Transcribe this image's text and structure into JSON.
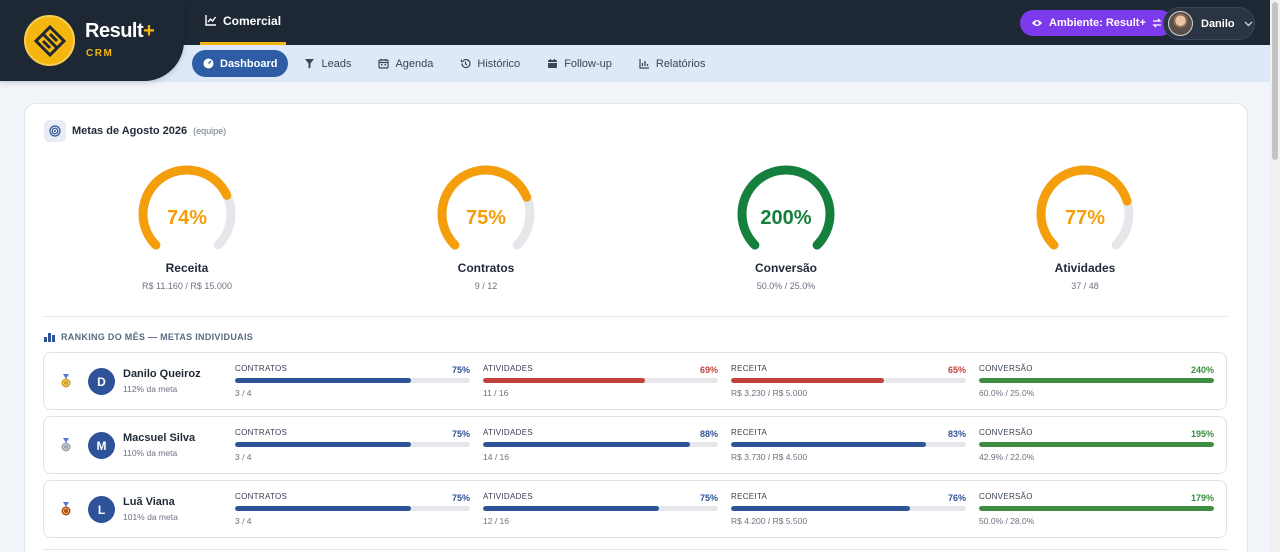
{
  "brand": {
    "name": "Result",
    "plus": "+",
    "sub": "CRM"
  },
  "header": {
    "main_tab": "Comercial",
    "env_button": "Ambiente: Result+",
    "user_name": "Danilo"
  },
  "nav": [
    {
      "label": "Dashboard",
      "icon": "gauge-icon",
      "active": true
    },
    {
      "label": "Leads",
      "icon": "funnel-icon",
      "active": false
    },
    {
      "label": "Agenda",
      "icon": "calendar-icon",
      "active": false
    },
    {
      "label": "Histórico",
      "icon": "history-icon",
      "active": false
    },
    {
      "label": "Follow-up",
      "icon": "calendar-check-icon",
      "active": false
    },
    {
      "label": "Relatórios",
      "icon": "report-icon",
      "active": false
    }
  ],
  "goals": {
    "title": "Metas de Agosto 2026",
    "subtitle": "(equipe)",
    "items": [
      {
        "label": "Receita",
        "pct_text": "74%",
        "fraction": 0.74,
        "value": "R$ 11.160 / R$ 15.000",
        "color": "#f59e0b"
      },
      {
        "label": "Contratos",
        "pct_text": "75%",
        "fraction": 0.75,
        "value": "9 / 12",
        "color": "#f59e0b"
      },
      {
        "label": "Conversão",
        "pct_text": "200%",
        "fraction": 1.0,
        "value": "50.0% / 25.0%",
        "color": "#15803d"
      },
      {
        "label": "Atividades",
        "pct_text": "77%",
        "fraction": 0.77,
        "value": "37 / 48",
        "color": "#f59e0b"
      }
    ]
  },
  "ranking": {
    "title": "RANKING DO MÊS — METAS INDIVIDUAIS",
    "rows": [
      {
        "initial": "D",
        "name": "Danilo Queiroz",
        "meta": "112% da meta",
        "medal_color": "#d4a017",
        "metrics": [
          {
            "label": "CONTRATOS",
            "pct_text": "75%",
            "fraction": 0.75,
            "value": "3 / 4",
            "color": "#2e5398"
          },
          {
            "label": "ATIVIDADES",
            "pct_text": "69%",
            "fraction": 0.69,
            "value": "11 / 16",
            "color": "#c2413b"
          },
          {
            "label": "RECEITA",
            "pct_text": "65%",
            "fraction": 0.65,
            "value": "R$ 3.230 / R$ 5.000",
            "color": "#c2413b"
          },
          {
            "label": "CONVERSÃO",
            "pct_text": "240%",
            "fraction": 1.0,
            "value": "60.0% / 25.0%",
            "color": "#3d8c40"
          }
        ]
      },
      {
        "initial": "M",
        "name": "Macsuel Silva",
        "meta": "110% da meta",
        "medal_color": "#9ca3af",
        "metrics": [
          {
            "label": "CONTRATOS",
            "pct_text": "75%",
            "fraction": 0.75,
            "value": "3 / 4",
            "color": "#2e5398"
          },
          {
            "label": "ATIVIDADES",
            "pct_text": "88%",
            "fraction": 0.88,
            "value": "14 / 16",
            "color": "#2e5398"
          },
          {
            "label": "RECEITA",
            "pct_text": "83%",
            "fraction": 0.83,
            "value": "R$ 3.730 / R$ 4.500",
            "color": "#2e5398"
          },
          {
            "label": "CONVERSÃO",
            "pct_text": "195%",
            "fraction": 1.0,
            "value": "42.9% / 22.0%",
            "color": "#3d8c40"
          }
        ]
      },
      {
        "initial": "L",
        "name": "Luã Viana",
        "meta": "101% da meta",
        "medal_color": "#b45309",
        "metrics": [
          {
            "label": "CONTRATOS",
            "pct_text": "75%",
            "fraction": 0.75,
            "value": "3 / 4",
            "color": "#2e5398"
          },
          {
            "label": "ATIVIDADES",
            "pct_text": "75%",
            "fraction": 0.75,
            "value": "12 / 16",
            "color": "#2e5398"
          },
          {
            "label": "RECEITA",
            "pct_text": "76%",
            "fraction": 0.76,
            "value": "R$ 4.200 / R$ 5.500",
            "color": "#2e5398"
          },
          {
            "label": "CONVERSÃO",
            "pct_text": "179%",
            "fraction": 1.0,
            "value": "50.0% / 28.0%",
            "color": "#3d8c40"
          }
        ]
      }
    ]
  }
}
